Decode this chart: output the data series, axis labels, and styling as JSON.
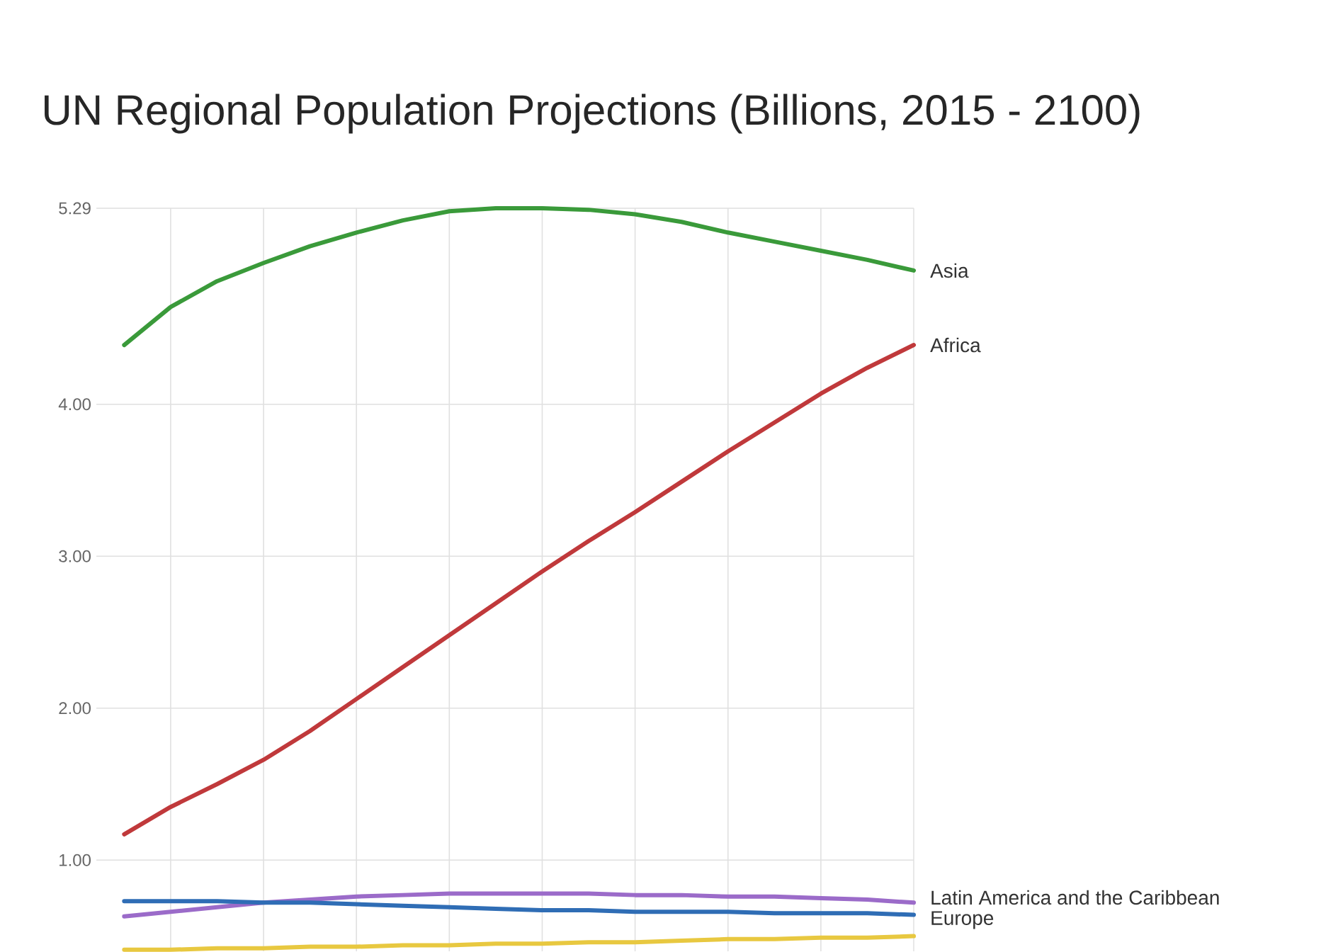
{
  "chart_data": {
    "type": "line",
    "title": "UN Regional Population Projections (Billions, 2015 - 2100)",
    "categories": [
      null,
      null,
      null,
      null,
      null,
      null,
      null,
      null,
      null,
      null,
      null,
      null,
      null,
      null,
      null,
      null,
      null,
      null
    ],
    "ylim": [
      0.4,
      5.29
    ],
    "yticks": [
      {
        "value": 1,
        "label": "1.00"
      },
      {
        "value": 2,
        "label": "2.00"
      },
      {
        "value": 3,
        "label": "3.00"
      },
      {
        "value": 4,
        "label": "4.00"
      },
      5.29
    ],
    "tick_labels": "y",
    "grid": true,
    "legend": false,
    "marker": "none",
    "line_style": "solid",
    "series": [
      {
        "name": "Asia",
        "color": "#3a9a3a",
        "values": [
          4.39,
          4.64,
          4.81,
          4.93,
          5.04,
          5.13,
          5.21,
          5.27,
          5.29,
          5.29,
          5.28,
          5.25,
          5.2,
          5.13,
          5.07,
          5.01,
          4.95,
          4.88
        ]
      },
      {
        "name": "Africa",
        "color": "#c0393b",
        "values": [
          1.17,
          1.35,
          1.5,
          1.66,
          1.85,
          2.06,
          2.27,
          2.48,
          2.69,
          2.9,
          3.1,
          3.29,
          3.49,
          3.69,
          3.88,
          4.07,
          4.24,
          4.39
        ]
      },
      {
        "name": "Latin America and the Caribbean",
        "color": "#9b6bc9",
        "values": [
          0.63,
          0.66,
          0.69,
          0.72,
          0.74,
          0.76,
          0.77,
          0.78,
          0.78,
          0.78,
          0.78,
          0.77,
          0.77,
          0.76,
          0.76,
          0.75,
          0.74,
          0.72
        ]
      },
      {
        "name": "Europe",
        "color": "#2f6db5",
        "values": [
          0.73,
          0.73,
          0.73,
          0.72,
          0.72,
          0.71,
          0.7,
          0.69,
          0.68,
          0.67,
          0.67,
          0.66,
          0.66,
          0.66,
          0.65,
          0.65,
          0.65,
          0.64
        ]
      },
      {
        "color": "#e8c840",
        "values": [
          0.41,
          0.41,
          0.42,
          0.42,
          0.43,
          0.43,
          0.44,
          0.44,
          0.45,
          0.45,
          0.46,
          0.46,
          0.47,
          0.48,
          0.48,
          0.49,
          0.49,
          0.5
        ]
      }
    ]
  }
}
